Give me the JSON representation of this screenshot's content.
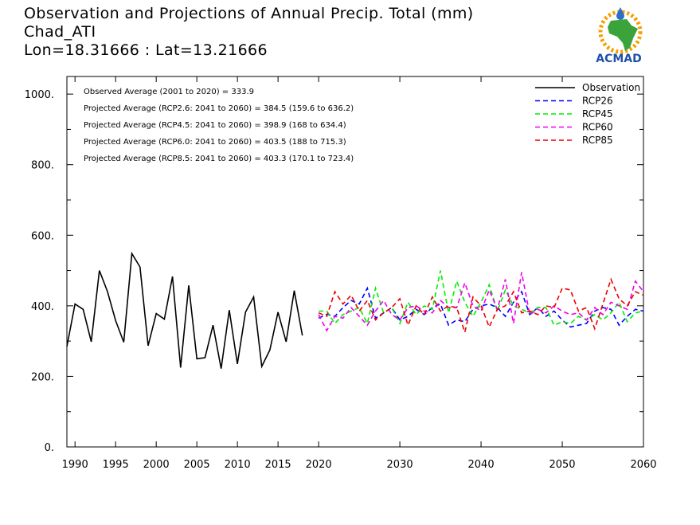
{
  "title": {
    "line1": "Observation and Projections of Annual Precip. Total (mm)",
    "line2": "Chad_ATI",
    "line3": "Lon=18.31666 : Lat=13.21666"
  },
  "logo": {
    "text": "ACMAD",
    "colors": {
      "africa": "#3aa33a",
      "sun": "#f5a000",
      "text": "#1f4fa8",
      "drop": "#2a6fc9"
    }
  },
  "chart_data": {
    "type": "line",
    "xlim": [
      1989,
      2060
    ],
    "ylim": [
      0,
      1050
    ],
    "x_ticks": [
      {
        "value": 1990,
        "label": "1990"
      },
      {
        "value": 1995,
        "label": "1995"
      },
      {
        "value": 2000,
        "label": "2000"
      },
      {
        "value": 2005,
        "label": "2005"
      },
      {
        "value": 2010,
        "label": "2010"
      },
      {
        "value": 2015,
        "label": "2015"
      },
      {
        "value": 2020,
        "label": "2020"
      },
      {
        "value": 2030,
        "label": "2030"
      },
      {
        "value": 2040,
        "label": "2040"
      },
      {
        "value": 2050,
        "label": "2050"
      },
      {
        "value": 2060,
        "label": "2060"
      }
    ],
    "y_ticks": [
      {
        "value": 0,
        "label": "0."
      },
      {
        "value": 200,
        "label": "200."
      },
      {
        "value": 400,
        "label": "400."
      },
      {
        "value": 600,
        "label": "600."
      },
      {
        "value": 800,
        "label": "800."
      },
      {
        "value": 1000,
        "label": "1000."
      }
    ],
    "annotations": [
      "Observed Average (2001 to 2020) = 333.9",
      "Projected Average (RCP2.6: 2041 to 2060) = 384.5 (159.6 to 636.2)",
      "Projected Average (RCP4.5: 2041 to 2060) = 398.9 (168 to 634.4)",
      "Projected Average (RCP6.0: 2041 to 2060) = 403.5 (188 to 715.3)",
      "Projected Average (RCP8.5: 2041 to 2060) = 403.3 (170.1 to 723.4)"
    ],
    "legend_position": "top-right",
    "series": [
      {
        "name": "Observation",
        "color": "#000000",
        "dashed": false,
        "x": [
          1989,
          1990,
          1991,
          1992,
          1993,
          1994,
          1995,
          1996,
          1997,
          1998,
          1999,
          2000,
          2001,
          2002,
          2003,
          2004,
          2005,
          2006,
          2007,
          2008,
          2009,
          2010,
          2011,
          2012,
          2013,
          2014,
          2015,
          2016,
          2017,
          2018,
          2019,
          2020
        ],
        "values": [
          285,
          405,
          390,
          298,
          500,
          440,
          358,
          297,
          548,
          510,
          287,
          378,
          362,
          483,
          225,
          458,
          250,
          253,
          345,
          222,
          388,
          235,
          382,
          425,
          228,
          275,
          382,
          298,
          443,
          316,
          null,
          null
        ]
      },
      {
        "name": "RCP26",
        "color": "#0000ff",
        "dashed": true,
        "x": [
          2020,
          2021,
          2022,
          2023,
          2024,
          2025,
          2026,
          2027,
          2028,
          2029,
          2030,
          2031,
          2032,
          2033,
          2034,
          2035,
          2036,
          2037,
          2038,
          2039,
          2040,
          2041,
          2042,
          2043,
          2044,
          2045,
          2046,
          2047,
          2048,
          2049,
          2050,
          2051,
          2052,
          2053,
          2054,
          2055,
          2056,
          2057,
          2058,
          2059,
          2060
        ],
        "values": [
          365,
          376,
          370,
          395,
          415,
          405,
          450,
          365,
          380,
          395,
          360,
          370,
          390,
          375,
          395,
          405,
          345,
          360,
          355,
          390,
          400,
          405,
          395,
          370,
          410,
          440,
          375,
          395,
          370,
          385,
          360,
          340,
          345,
          350,
          385,
          395,
          390,
          345,
          370,
          390,
          385
        ]
      },
      {
        "name": "RCP45",
        "color": "#00ee00",
        "dashed": true,
        "x": [
          2020,
          2021,
          2022,
          2023,
          2024,
          2025,
          2026,
          2027,
          2028,
          2029,
          2030,
          2031,
          2032,
          2033,
          2034,
          2035,
          2036,
          2037,
          2038,
          2039,
          2040,
          2041,
          2042,
          2043,
          2044,
          2045,
          2046,
          2047,
          2048,
          2049,
          2050,
          2051,
          2052,
          2053,
          2054,
          2055,
          2056,
          2057,
          2058,
          2059,
          2060
        ],
        "values": [
          385,
          385,
          350,
          375,
          385,
          395,
          350,
          450,
          380,
          395,
          350,
          410,
          375,
          400,
          390,
          500,
          380,
          470,
          410,
          370,
          410,
          460,
          385,
          445,
          400,
          390,
          380,
          395,
          395,
          345,
          355,
          350,
          370,
          360,
          375,
          360,
          380,
          410,
          355,
          380,
          385
        ]
      },
      {
        "name": "RCP60",
        "color": "#ee00ee",
        "dashed": true,
        "x": [
          2020,
          2021,
          2022,
          2023,
          2024,
          2025,
          2026,
          2027,
          2028,
          2029,
          2030,
          2031,
          2032,
          2033,
          2034,
          2035,
          2036,
          2037,
          2038,
          2039,
          2040,
          2041,
          2042,
          2043,
          2044,
          2045,
          2046,
          2047,
          2048,
          2049,
          2050,
          2051,
          2052,
          2053,
          2054,
          2055,
          2056,
          2057,
          2058,
          2059,
          2060
        ],
        "values": [
          375,
          330,
          370,
          365,
          395,
          370,
          345,
          385,
          415,
          375,
          360,
          395,
          400,
          385,
          380,
          415,
          395,
          395,
          465,
          400,
          385,
          445,
          390,
          475,
          350,
          495,
          375,
          390,
          380,
          400,
          385,
          375,
          380,
          360,
          395,
          375,
          410,
          400,
          390,
          470,
          440
        ]
      },
      {
        "name": "RCP85",
        "color": "#ee0000",
        "dashed": true,
        "x": [
          2020,
          2021,
          2022,
          2023,
          2024,
          2025,
          2026,
          2027,
          2028,
          2029,
          2030,
          2031,
          2032,
          2033,
          2034,
          2035,
          2036,
          2037,
          2038,
          2039,
          2040,
          2041,
          2042,
          2043,
          2044,
          2045,
          2046,
          2047,
          2048,
          2049,
          2050,
          2051,
          2052,
          2053,
          2054,
          2055,
          2056,
          2057,
          2058,
          2059,
          2060
        ],
        "values": [
          380,
          370,
          440,
          405,
          430,
          385,
          415,
          360,
          380,
          395,
          420,
          345,
          400,
          375,
          425,
          385,
          400,
          395,
          325,
          425,
          400,
          340,
          390,
          400,
          440,
          380,
          385,
          375,
          400,
          395,
          450,
          445,
          385,
          395,
          335,
          405,
          475,
          420,
          400,
          440,
          430
        ]
      }
    ]
  }
}
